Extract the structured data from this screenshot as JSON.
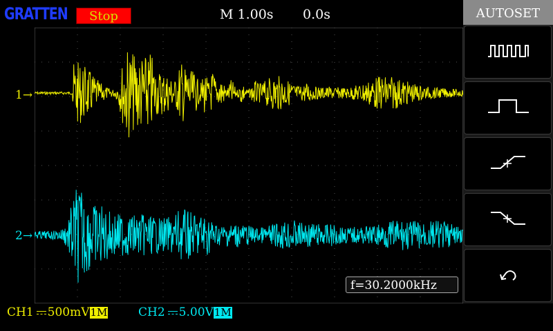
{
  "header": {
    "logo": "GRATTEN",
    "run_state": "Stop",
    "timebase": "M 1.00s",
    "trigger_position": "0.0s"
  },
  "panel": {
    "autoset_label": "AUTOSET",
    "buttons": [
      {
        "name": "square-wave-icon"
      },
      {
        "name": "single-pulse-icon"
      },
      {
        "name": "rising-edge-icon"
      },
      {
        "name": "falling-edge-icon"
      },
      {
        "name": "undo-icon"
      }
    ]
  },
  "channels": {
    "ch1": {
      "marker": "1",
      "label": "CH1",
      "volts_div": "500mV",
      "impedance": "1M",
      "color": "#f0f000"
    },
    "ch2": {
      "marker": "2",
      "label": "CH2",
      "volts_div": "5.00V",
      "impedance": "1M",
      "color": "#00e8f0"
    }
  },
  "measurement": {
    "frequency": "f=30.2000kHz"
  }
}
